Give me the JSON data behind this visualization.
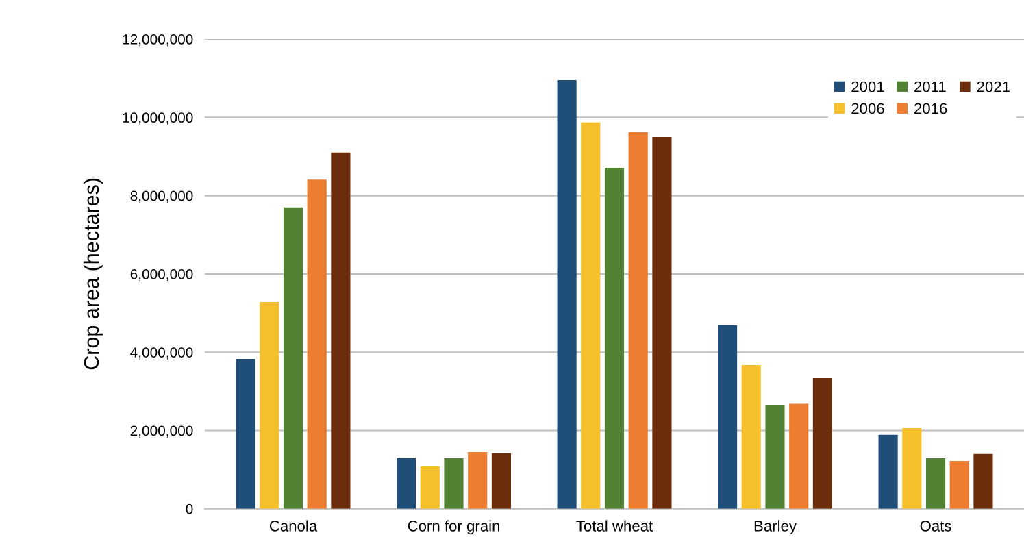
{
  "chart_data": {
    "type": "bar",
    "ylabel": "Crop area (hectares)",
    "categories": [
      "Canola",
      "Corn for grain",
      "Total wheat",
      "Barley",
      "Oats"
    ],
    "series": [
      {
        "name": "2001",
        "color": "#1f4e79",
        "values": [
          3830000,
          1290000,
          10950000,
          4690000,
          1890000
        ]
      },
      {
        "name": "2006",
        "color": "#f6c02d",
        "values": [
          5280000,
          1080000,
          9870000,
          3670000,
          2060000
        ]
      },
      {
        "name": "2011",
        "color": "#548235",
        "values": [
          7700000,
          1290000,
          8710000,
          2640000,
          1290000
        ]
      },
      {
        "name": "2016",
        "color": "#ed7d31",
        "values": [
          8410000,
          1450000,
          9620000,
          2680000,
          1220000
        ]
      },
      {
        "name": "2021",
        "color": "#6b2d0c",
        "values": [
          9100000,
          1420000,
          9500000,
          3340000,
          1400000
        ]
      }
    ],
    "ylim": [
      0,
      12000000
    ],
    "yticks": [
      0,
      {
        "value": 2000000,
        "label": "2,000,000"
      },
      {
        "value": 4000000,
        "label": "4,000,000"
      },
      {
        "value": 6000000,
        "label": "6,000,000"
      },
      {
        "value": 8000000,
        "label": "8,000,000"
      },
      {
        "value": 10000000,
        "label": "10,000,000"
      },
      {
        "value": 12000000,
        "label": "12,000,000"
      }
    ],
    "grid": "y",
    "legend": "top right"
  }
}
